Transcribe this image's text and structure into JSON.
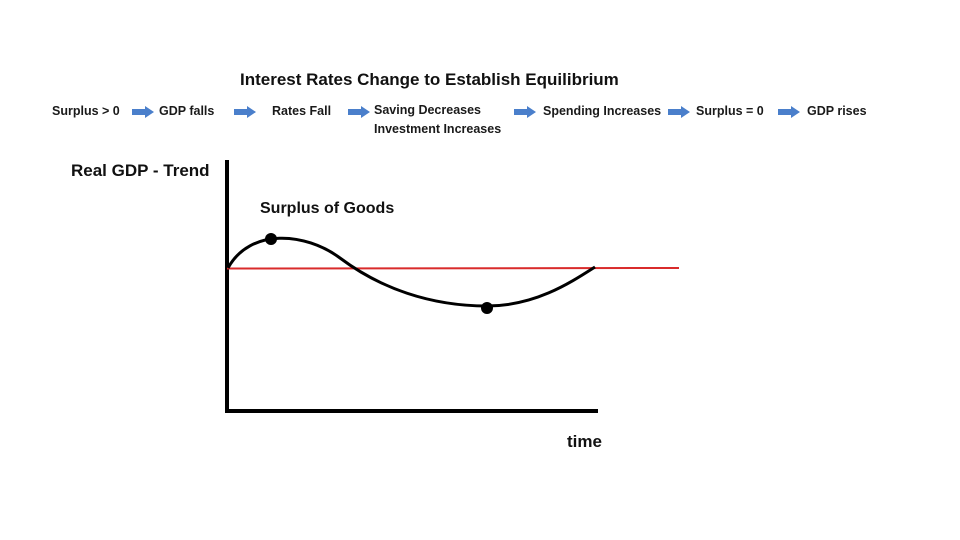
{
  "title": "Interest Rates Change to Establish Equilibrium",
  "flow": {
    "steps": [
      {
        "text": "Surplus > 0"
      },
      {
        "text": "GDP falls"
      },
      {
        "text": "Rates Fall"
      },
      {
        "text": "Saving Decreases"
      },
      {
        "text": "Investment Increases"
      },
      {
        "text": "Spending Increases"
      },
      {
        "text": "Surplus = 0"
      },
      {
        "text": "GDP rises"
      }
    ],
    "arrow_color": "#4a7fcb",
    "arrow_icon": "right-arrow-icon"
  },
  "graph": {
    "y_axis_label": "Real GDP - Trend",
    "x_axis_label": "time",
    "annotation": "Surplus of Goods",
    "trend_line_color": "#d92b2b",
    "curve_color": "#000000"
  }
}
